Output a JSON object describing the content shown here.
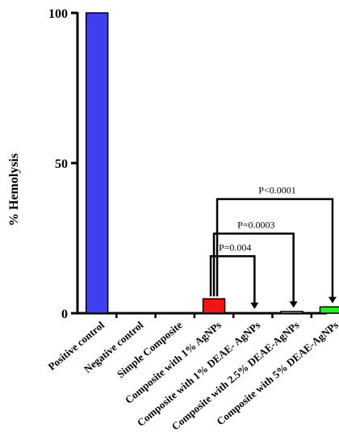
{
  "chart_data": {
    "type": "bar",
    "title": "",
    "xlabel": "",
    "ylabel": "% Hemolysis",
    "ylim": [
      0,
      100
    ],
    "yticks": [
      "0",
      "50",
      "100"
    ],
    "grid": false,
    "categories": [
      "Positive control",
      "Negative control",
      "Simple Composite",
      "Composite with 1% AgNPs",
      "Composite with 1% DEAE- AgNPs",
      "Composite with 2.5% DEAE-AgNPs",
      "Composite with 5% DEAE-AgNPs"
    ],
    "values": [
      100,
      0,
      0,
      4.8,
      0.2,
      0.6,
      2.1
    ],
    "colors": [
      "#3f3ff0",
      "#ffffff",
      "#ffffff",
      "#f01414",
      "#ffffff",
      "#ffffff",
      "#22ee22"
    ],
    "annotations": [
      {
        "text": "P=0.004",
        "from": "Composite with 1% AgNPs",
        "to": "Composite with 1% DEAE- AgNPs",
        "level": 19
      },
      {
        "text": "P=0.0003",
        "from": "Composite with 1% AgNPs",
        "to": "Composite with 2.5% DEAE-AgNPs",
        "level": 26.5
      },
      {
        "text": "P<0.0001",
        "from": "Composite with 1% AgNPs",
        "to": "Composite with 5% DEAE-AgNPs",
        "level": 38
      }
    ]
  }
}
